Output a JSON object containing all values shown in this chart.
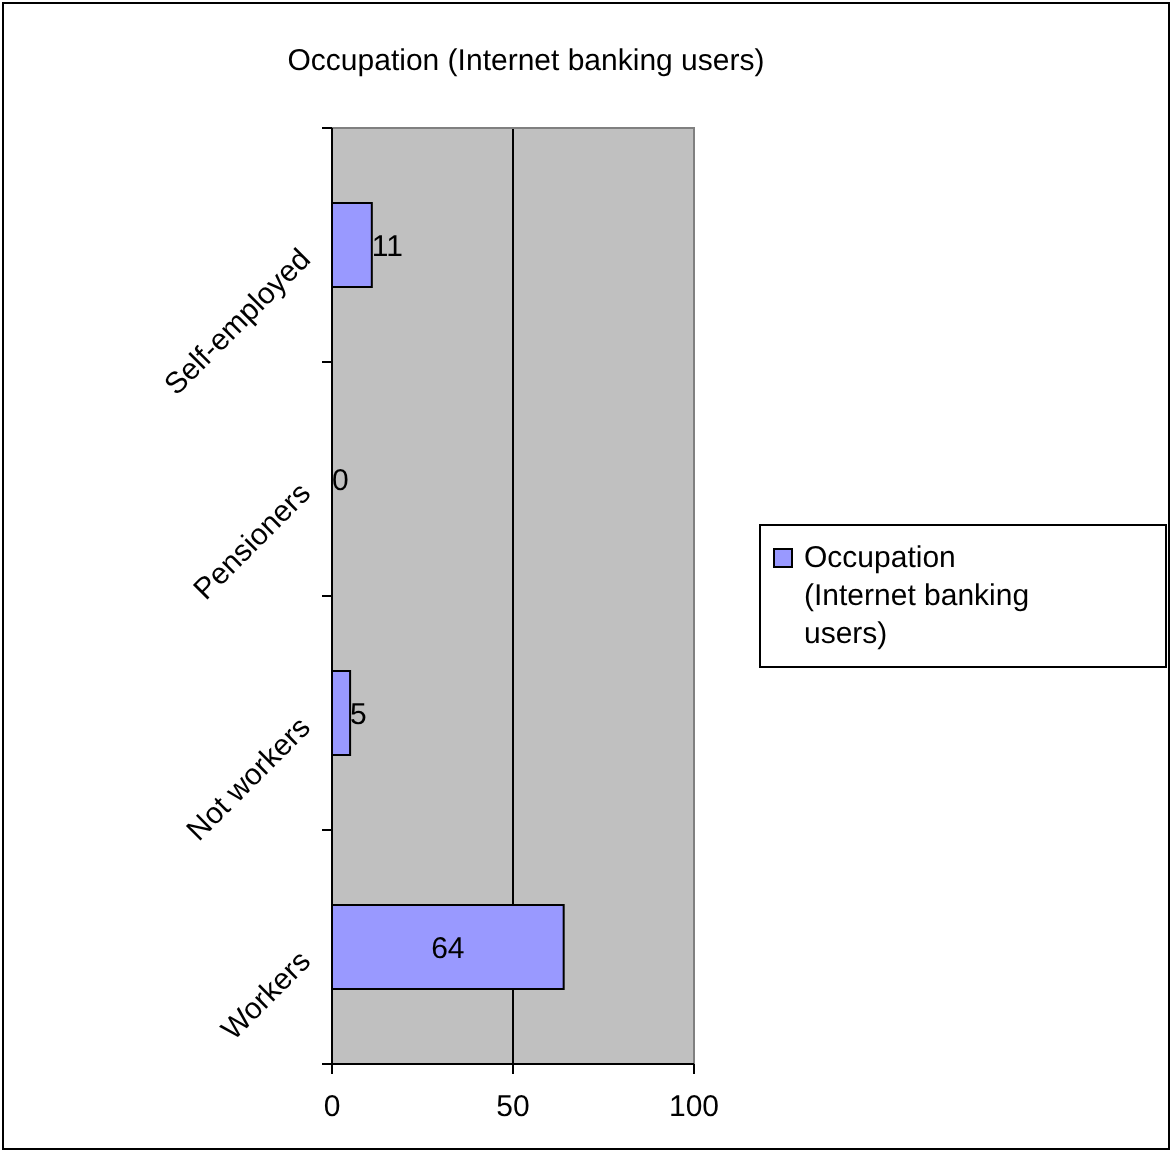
{
  "chart_data": {
    "type": "bar",
    "title": "Occupation (Internet banking users)",
    "orientation": "horizontal",
    "categories": [
      "Self-employed",
      "Pensioners",
      "Not workers",
      "Workers"
    ],
    "series": [
      {
        "name": "Occupation (Internet banking users)",
        "color": "#9999ff",
        "values": [
          11,
          0,
          5,
          64
        ]
      }
    ],
    "xlim": [
      0,
      100
    ],
    "xticks": [
      0,
      50,
      100
    ],
    "grid": "x",
    "legend": "right",
    "data_labels": true
  }
}
